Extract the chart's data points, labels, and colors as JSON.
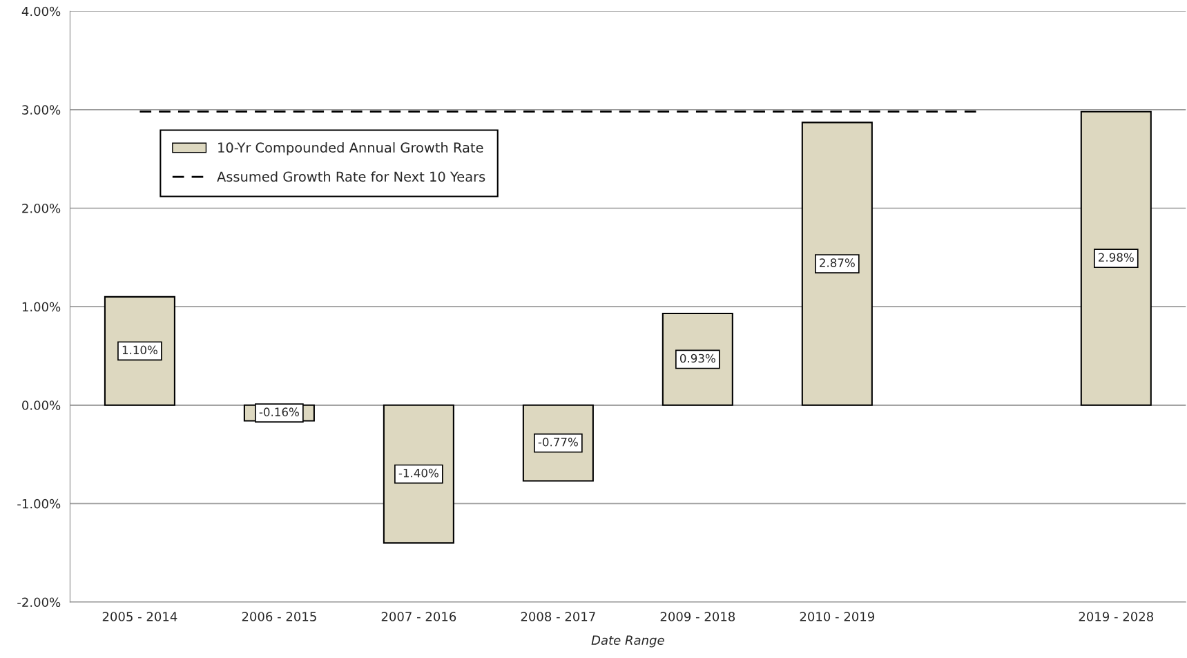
{
  "chart_data": {
    "type": "bar",
    "xlabel": "Date Range",
    "categories": [
      "2005 - 2014",
      "2006 - 2015",
      "2007 - 2016",
      "2008 - 2017",
      "2009 - 2018",
      "2010 - 2019",
      null,
      "2019 - 2028"
    ],
    "series": [
      {
        "name": "10-Yr Compounded Annual Growth Rate",
        "color": "#ddd8c0",
        "values": [
          1.1,
          -0.16,
          -1.4,
          -0.77,
          0.93,
          2.87,
          null,
          2.98
        ],
        "value_labels": [
          "1.10%",
          "-0.16%",
          "-1.40%",
          "-0.77%",
          "0.93%",
          "2.87%",
          null,
          "2.98%"
        ]
      },
      {
        "name": "Assumed Growth Rate for Next 10 Years",
        "type": "line",
        "color": "#000000",
        "line_style": "dashed",
        "values": [
          2.98,
          2.98,
          2.98,
          2.98,
          2.98,
          2.98,
          2.98,
          null
        ]
      }
    ],
    "ylim": [
      -2,
      4
    ],
    "yticks": [
      {
        "value": -2,
        "label": "-2.00%"
      },
      {
        "value": -1,
        "label": "-1.00%"
      },
      {
        "value": 0,
        "label": "0.00%"
      },
      {
        "value": 1,
        "label": "1.00%"
      },
      {
        "value": 2,
        "label": "2.00%"
      },
      {
        "value": 3,
        "label": "3.00%"
      },
      {
        "value": 4,
        "label": "4.00%"
      }
    ],
    "grid": "y",
    "legend": "top left"
  }
}
